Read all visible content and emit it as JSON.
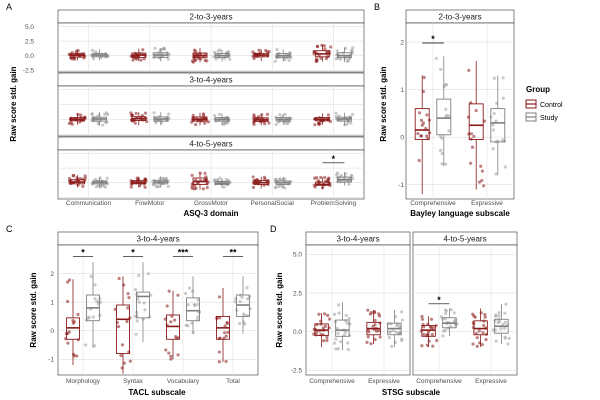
{
  "colors": {
    "control": "#8b1a1a",
    "study": "#9e9e9e",
    "box_study": "#7f7f7f"
  },
  "legend": {
    "title": "Group",
    "items": [
      {
        "label": "Control",
        "group": "control"
      },
      {
        "label": "Study",
        "group": "study"
      }
    ]
  },
  "chart_data": [
    {
      "id": "A",
      "letter": "A",
      "type": "box",
      "ylabel": "Raw score std. gain",
      "xlabel": "ASQ-3 domain",
      "ylim": [
        -2.8,
        5.6
      ],
      "yticks": [
        -2.5,
        0.0,
        2.5,
        5.0
      ],
      "ytick_labels": [
        "-2.5",
        "0.0",
        "2.5",
        "5.0"
      ],
      "categories": [
        "Communication",
        "FineMotor",
        "GrossMotor",
        "PersonalSocial",
        "ProblemSolving"
      ],
      "facets": [
        {
          "strip": "2-to-3-years",
          "series": {
            "control": [
              {
                "q1": -0.25,
                "med": 0.05,
                "q3": 0.3,
                "lo": -0.8,
                "hi": 0.9
              },
              {
                "q1": -0.3,
                "med": 0.1,
                "q3": 0.45,
                "lo": -0.9,
                "hi": 1.2
              },
              {
                "q1": -0.35,
                "med": 0.0,
                "q3": 0.45,
                "lo": -1.1,
                "hi": 1.3
              },
              {
                "q1": -0.2,
                "med": 0.1,
                "q3": 0.4,
                "lo": -0.9,
                "hi": 1.1
              },
              {
                "q1": -0.2,
                "med": 0.3,
                "q3": 0.85,
                "lo": -1.0,
                "hi": 1.8
              }
            ],
            "study": [
              {
                "q1": -0.2,
                "med": 0.1,
                "q3": 0.4,
                "lo": -0.8,
                "hi": 1.1
              },
              {
                "q1": -0.3,
                "med": 0.1,
                "q3": 0.5,
                "lo": -1.0,
                "hi": 1.3
              },
              {
                "q1": -0.3,
                "med": 0.0,
                "q3": 0.35,
                "lo": -1.0,
                "hi": 1.0
              },
              {
                "q1": -0.3,
                "med": 0.0,
                "q3": 0.35,
                "lo": -1.0,
                "hi": 1.1
              },
              {
                "q1": -0.3,
                "med": 0.0,
                "q3": 0.5,
                "lo": -1.1,
                "hi": 1.4
              }
            ]
          },
          "sig": []
        },
        {
          "strip": "3-to-4-years",
          "series": {
            "control": [
              {
                "q1": -0.25,
                "med": 0.0,
                "q3": 0.3,
                "lo": -0.9,
                "hi": 1.0
              },
              {
                "q1": -0.2,
                "med": 0.1,
                "q3": 0.45,
                "lo": -1.0,
                "hi": 1.2
              },
              {
                "q1": -0.3,
                "med": 0.0,
                "q3": 0.4,
                "lo": -1.0,
                "hi": 1.1
              },
              {
                "q1": -0.35,
                "med": -0.1,
                "q3": 0.25,
                "lo": -1.0,
                "hi": 0.9
              },
              {
                "q1": -0.25,
                "med": 0.0,
                "q3": 0.3,
                "lo": -0.9,
                "hi": 1.0
              }
            ],
            "study": [
              {
                "q1": -0.3,
                "med": 0.05,
                "q3": 0.35,
                "lo": -1.1,
                "hi": 1.2
              },
              {
                "q1": -0.3,
                "med": 0.05,
                "q3": 0.4,
                "lo": -1.0,
                "hi": 1.2
              },
              {
                "q1": -0.3,
                "med": 0.0,
                "q3": 0.3,
                "lo": -1.0,
                "hi": 1.0
              },
              {
                "q1": -0.3,
                "med": 0.0,
                "q3": 0.3,
                "lo": -0.9,
                "hi": 1.0
              },
              {
                "q1": -0.3,
                "med": 0.05,
                "q3": 0.35,
                "lo": -1.0,
                "hi": 1.1
              }
            ]
          },
          "sig": []
        },
        {
          "strip": "4-to-5-years",
          "series": {
            "control": [
              {
                "q1": -0.2,
                "med": 0.1,
                "q3": 0.5,
                "lo": -0.8,
                "hi": 1.3
              },
              {
                "q1": -0.15,
                "med": 0.1,
                "q3": 0.35,
                "lo": -0.8,
                "hi": 1.0
              },
              {
                "q1": -0.3,
                "med": 0.2,
                "q3": 0.8,
                "lo": -1.2,
                "hi": 1.7
              },
              {
                "q1": -0.3,
                "med": 0.0,
                "q3": 0.35,
                "lo": -1.0,
                "hi": 1.0
              },
              {
                "q1": -0.45,
                "med": -0.3,
                "q3": 0.1,
                "lo": -1.1,
                "hi": 0.9
              }
            ],
            "study": [
              {
                "q1": -0.2,
                "med": 0.05,
                "q3": 0.3,
                "lo": -0.8,
                "hi": 0.9
              },
              {
                "q1": -0.2,
                "med": 0.1,
                "q3": 0.4,
                "lo": -0.8,
                "hi": 1.1
              },
              {
                "q1": -0.3,
                "med": -0.1,
                "q3": 0.2,
                "lo": -0.9,
                "hi": 0.8
              },
              {
                "q1": -0.3,
                "med": 0.0,
                "q3": 0.3,
                "lo": -0.9,
                "hi": 1.0
              },
              {
                "q1": 0.1,
                "med": 0.5,
                "q3": 0.95,
                "lo": -0.5,
                "hi": 1.8
              }
            ]
          },
          "sig": [
            {
              "cat": 4,
              "label": "*",
              "y": 3.4
            }
          ]
        }
      ]
    },
    {
      "id": "B",
      "letter": "B",
      "type": "box",
      "ylabel": "Raw score std. gain",
      "xlabel": "Bayley language subscale",
      "ylim": [
        -1.3,
        2.4
      ],
      "yticks": [
        -1,
        0,
        1,
        2
      ],
      "ytick_labels": [
        "-1",
        "0",
        "1",
        "2"
      ],
      "categories": [
        "Comprehensive",
        "Expressive"
      ],
      "facets": [
        {
          "strip": "2-to-3-years",
          "series": {
            "control": [
              {
                "q1": -0.05,
                "med": 0.15,
                "q3": 0.6,
                "lo": -1.2,
                "hi": 1.3
              },
              {
                "q1": -0.05,
                "med": 0.25,
                "q3": 0.7,
                "lo": -1.1,
                "hi": 1.6
              }
            ],
            "study": [
              {
                "q1": 0.05,
                "med": 0.4,
                "q3": 0.8,
                "lo": -0.6,
                "hi": 1.7
              },
              {
                "q1": -0.1,
                "med": 0.3,
                "q3": 0.6,
                "lo": -0.8,
                "hi": 1.3
              }
            ]
          },
          "sig": [
            {
              "cat": 0,
              "label": "*",
              "y": 1.98
            }
          ]
        }
      ]
    },
    {
      "id": "C",
      "letter": "C",
      "type": "box",
      "ylabel": "Raw score std. gain",
      "xlabel": "TACL subscale",
      "ylim": [
        -1.55,
        3.0
      ],
      "yticks": [
        -1,
        0,
        1,
        2
      ],
      "ytick_labels": [
        "-1",
        "0",
        "1",
        "2"
      ],
      "categories": [
        "Morphology",
        "Syntax",
        "Vocabulary",
        "Total"
      ],
      "facets": [
        {
          "strip": "3-to-4-years",
          "series": {
            "control": [
              {
                "q1": -0.3,
                "med": 0.1,
                "q3": 0.45,
                "lo": -1.2,
                "hi": 1.8
              },
              {
                "q1": -0.8,
                "med": 0.4,
                "q3": 0.9,
                "lo": -1.5,
                "hi": 1.9
              },
              {
                "q1": -0.3,
                "med": 0.15,
                "q3": 0.55,
                "lo": -1.0,
                "hi": 1.4
              },
              {
                "q1": -0.3,
                "med": 0.1,
                "q3": 0.5,
                "lo": -1.1,
                "hi": 1.5
              }
            ],
            "study": [
              {
                "q1": 0.35,
                "med": 0.8,
                "q3": 1.25,
                "lo": -0.6,
                "hi": 2.4
              },
              {
                "q1": 0.45,
                "med": 1.2,
                "q3": 1.35,
                "lo": -0.4,
                "hi": 2.4
              },
              {
                "q1": 0.35,
                "med": 0.7,
                "q3": 1.15,
                "lo": -0.1,
                "hi": 1.9
              },
              {
                "q1": 0.5,
                "med": 0.9,
                "q3": 1.25,
                "lo": -0.1,
                "hi": 1.9
              }
            ]
          },
          "sig": [
            {
              "cat": 0,
              "label": "*",
              "y": 2.6
            },
            {
              "cat": 1,
              "label": "*",
              "y": 2.6
            },
            {
              "cat": 2,
              "label": "***",
              "y": 2.6
            },
            {
              "cat": 3,
              "label": "**",
              "y": 2.6
            }
          ]
        }
      ]
    },
    {
      "id": "D",
      "letter": "D",
      "type": "box",
      "ylabel": "Raw score std. gain",
      "xlabel": "STSG subscale",
      "ylim": [
        -2.8,
        5.6
      ],
      "yticks": [
        -2.5,
        0.0,
        2.5,
        5.0
      ],
      "ytick_labels": [
        "-2.5",
        "0.0",
        "2.5",
        "5.0"
      ],
      "categories": [
        "Comprehensive",
        "Expressive"
      ],
      "facets": [
        {
          "strip": "3-to-4-years",
          "series": {
            "control": [
              {
                "q1": -0.25,
                "med": 0.1,
                "q3": 0.5,
                "lo": -1.0,
                "hi": 1.2
              },
              {
                "q1": -0.2,
                "med": 0.2,
                "q3": 0.6,
                "lo": -0.8,
                "hi": 1.4
              }
            ],
            "study": [
              {
                "q1": -0.3,
                "med": 0.1,
                "q3": 0.75,
                "lo": -1.2,
                "hi": 1.9
              },
              {
                "q1": -0.2,
                "med": 0.2,
                "q3": 0.55,
                "lo": -1.0,
                "hi": 1.4
              }
            ]
          },
          "sig": []
        },
        {
          "strip": "4-to-5-years",
          "series": {
            "control": [
              {
                "q1": -0.3,
                "med": 0.1,
                "q3": 0.4,
                "lo": -1.0,
                "hi": 1.0
              },
              {
                "q1": -0.2,
                "med": 0.2,
                "q3": 0.7,
                "lo": -1.0,
                "hi": 1.5
              }
            ],
            "study": [
              {
                "q1": 0.25,
                "med": 0.55,
                "q3": 0.9,
                "lo": -0.3,
                "hi": 1.5
              },
              {
                "q1": -0.1,
                "med": 0.35,
                "q3": 0.8,
                "lo": -0.8,
                "hi": 1.8
              }
            ]
          },
          "sig": [
            {
              "cat": 0,
              "label": "*",
              "y": 1.8
            }
          ]
        }
      ]
    }
  ]
}
